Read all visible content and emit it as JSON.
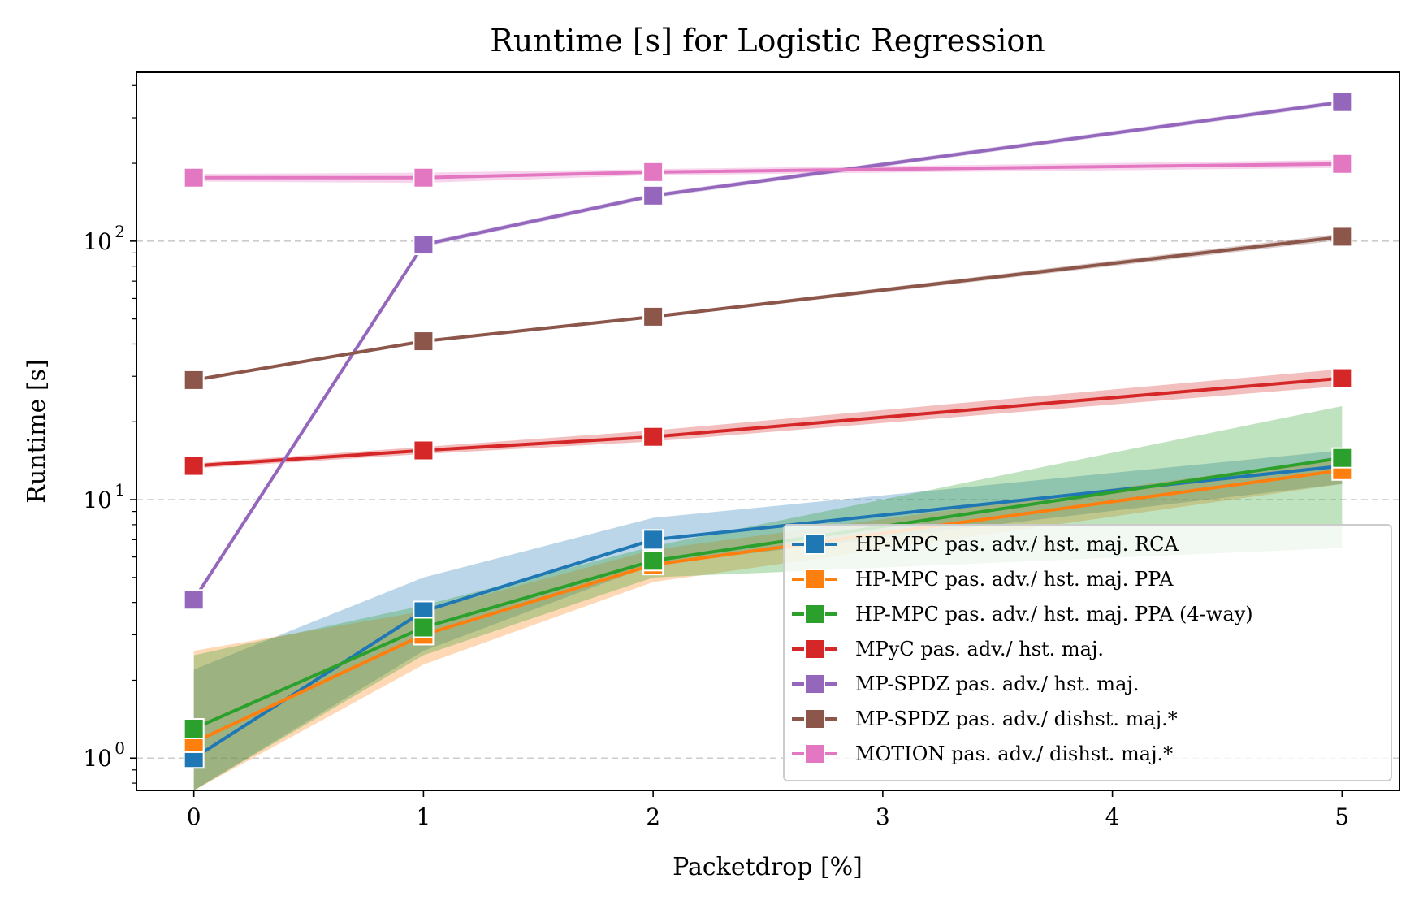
{
  "chart_data": {
    "type": "line",
    "title": "Runtime [s] for Logistic Regression",
    "xlabel": "Packetdrop [%]",
    "ylabel": "Runtime [s]",
    "y_scale": "log",
    "xlim": [
      -0.25,
      5.25
    ],
    "ylim": [
      0.75,
      450
    ],
    "x_ticks": [
      0,
      1,
      2,
      3,
      4,
      5
    ],
    "y_major_ticks": [
      {
        "value": 1,
        "base": "10",
        "exp": "0"
      },
      {
        "value": 10,
        "base": "10",
        "exp": "1"
      },
      {
        "value": 100,
        "base": "10",
        "exp": "2"
      }
    ],
    "grid": "horizontal dashed at major y ticks",
    "legend_position": "lower-right",
    "series": [
      {
        "name": "HP-MPC pas. adv./ hst. maj. RCA",
        "color": "#1f77b4",
        "x": [
          0,
          1,
          2,
          5
        ],
        "y": [
          1.0,
          3.7,
          7.0,
          13.5
        ],
        "ci_low": [
          0.5,
          2.6,
          5.6,
          11.5
        ],
        "ci_high": [
          2.2,
          5.0,
          8.5,
          15.5
        ]
      },
      {
        "name": "HP-MPC pas. adv./ hst. maj. PPA",
        "color": "#ff7f0e",
        "x": [
          0,
          1,
          2,
          5
        ],
        "y": [
          1.15,
          3.0,
          5.6,
          13.0
        ],
        "ci_low": [
          0.5,
          2.3,
          4.8,
          11.5
        ],
        "ci_high": [
          2.6,
          3.7,
          6.4,
          14.5
        ]
      },
      {
        "name": "HP-MPC pas. adv./ hst. maj. PPA (4-way)",
        "color": "#2ca02c",
        "x": [
          0,
          1,
          2,
          5
        ],
        "y": [
          1.3,
          3.2,
          5.8,
          14.5
        ],
        "ci_low": [
          0.5,
          2.5,
          5.0,
          6.5
        ],
        "ci_high": [
          2.5,
          3.9,
          6.6,
          23
        ]
      },
      {
        "name": "MPyC pas. adv./ hst. maj.",
        "color": "#d62728",
        "x": [
          0,
          1,
          2,
          5
        ],
        "y": [
          13.5,
          15.5,
          17.5,
          29.5
        ],
        "ci_low": [
          13.2,
          15.0,
          16.8,
          27.5
        ],
        "ci_high": [
          13.8,
          16.0,
          18.5,
          32
        ]
      },
      {
        "name": "MP-SPDZ pas. adv./ hst. maj.",
        "color": "#9467bd",
        "x": [
          0,
          1,
          2,
          5
        ],
        "y": [
          4.1,
          97,
          150,
          345
        ],
        "ci_low": [
          4.0,
          95,
          147,
          338
        ],
        "ci_high": [
          4.2,
          99,
          153,
          352
        ]
      },
      {
        "name": "MP-SPDZ pas. adv./ dishst. maj.*",
        "color": "#8c564b",
        "x": [
          0,
          1,
          2,
          5
        ],
        "y": [
          29,
          41,
          51,
          104
        ],
        "ci_low": [
          28.6,
          40.4,
          50.3,
          101
        ],
        "ci_high": [
          29.4,
          41.6,
          51.7,
          107
        ]
      },
      {
        "name": "MOTION pas. adv./ dishst. maj.*",
        "color": "#e377c2",
        "x": [
          0,
          1,
          2,
          5
        ],
        "y": [
          176,
          176,
          185,
          199
        ],
        "ci_low": [
          170,
          168,
          180,
          192
        ],
        "ci_high": [
          182,
          184,
          190,
          206
        ]
      }
    ]
  }
}
